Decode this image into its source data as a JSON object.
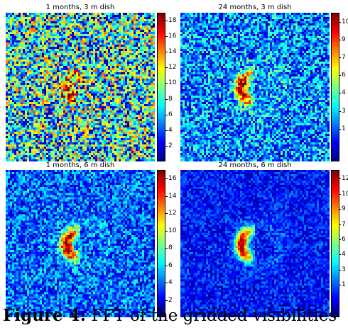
{
  "panels": [
    {
      "title": "1 months, 3 m dish",
      "colorbar_ticks": [
        "18",
        "16",
        "14",
        "12",
        "10",
        "8",
        "6",
        "4",
        "2"
      ]
    },
    {
      "title": "24 months, 3 m dish",
      "colorbar_ticks": [
        "10",
        "9",
        "7",
        "6",
        "4",
        "3",
        "1"
      ]
    },
    {
      "title": "1 months, 6 m dish",
      "colorbar_ticks": [
        "16",
        "14",
        "12",
        "10",
        "8",
        "6",
        "4",
        "2"
      ]
    },
    {
      "title": "24 months, 6 m dish",
      "colorbar_ticks": [
        "12",
        "10",
        "9",
        "7",
        "6",
        "4",
        "3",
        "1"
      ]
    }
  ],
  "colormap": "jet",
  "caption": {
    "label": "Figure 4:",
    "text": "FFT of the gridded visibilities"
  },
  "chart_data": [
    {
      "type": "heatmap",
      "title": "1 months, 3 m dish",
      "colorbar_range": [
        0,
        19
      ],
      "colorbar_ticks": [
        18,
        16,
        14,
        12,
        10,
        8,
        6,
        4,
        2
      ],
      "feature": "faint crescent at center, high noise"
    },
    {
      "type": "heatmap",
      "title": "24 months, 3 m dish",
      "colorbar_range": [
        0,
        11
      ],
      "colorbar_ticks": [
        10,
        9,
        7,
        6,
        4,
        3,
        1
      ],
      "feature": "crescent at center"
    },
    {
      "type": "heatmap",
      "title": "1 months, 6 m dish",
      "colorbar_range": [
        0,
        17
      ],
      "colorbar_ticks": [
        16,
        14,
        12,
        10,
        8,
        6,
        4,
        2
      ],
      "feature": "crescent at center"
    },
    {
      "type": "heatmap",
      "title": "24 months, 6 m dish",
      "colorbar_range": [
        0,
        13
      ],
      "colorbar_ticks": [
        12,
        10,
        9,
        7,
        6,
        4,
        3,
        1
      ],
      "feature": "crescent at center, low noise"
    }
  ]
}
